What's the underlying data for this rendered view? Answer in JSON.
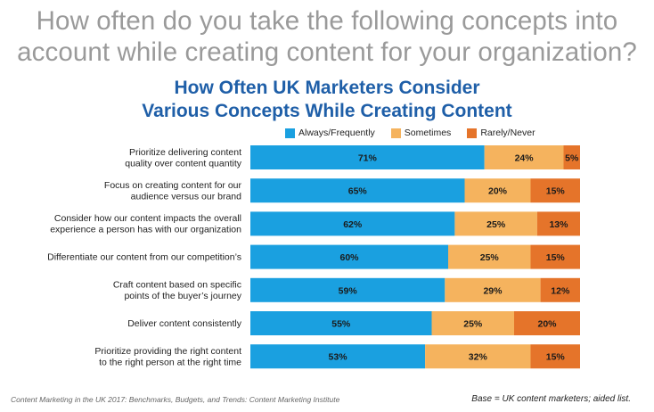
{
  "header": {
    "question_line1": "How often do you take the following concepts into",
    "question_line2": "account while creating content for your organization?",
    "title_line1": "How Often UK Marketers Consider",
    "title_line2": "Various Concepts While Creating Content"
  },
  "colors": {
    "always": "#1aa0e0",
    "sometimes": "#f5b35e",
    "rarely": "#e5742a",
    "title": "#1f5fa8"
  },
  "chart_data": {
    "type": "bar",
    "orientation": "horizontal",
    "stacked": true,
    "normalized_to_100": true,
    "categories": [
      [
        "Prioritize delivering content",
        "quality over content quantity"
      ],
      [
        "Focus on creating content for our",
        "audience versus our brand"
      ],
      [
        "Consider how our content impacts the overall",
        "experience a person has with our organization"
      ],
      [
        "Differentiate our content from our competition’s"
      ],
      [
        "Craft content based on specific",
        "points of the buyer’s journey"
      ],
      [
        "Deliver content consistently"
      ],
      [
        "Prioritize providing the right content",
        "to the right person at the right time"
      ]
    ],
    "series": [
      {
        "name": "Always/Frequently",
        "values": [
          71,
          65,
          62,
          60,
          59,
          55,
          53
        ],
        "labels": [
          "71%",
          "65%",
          "62%",
          "60%",
          "59%",
          "55%",
          "53%"
        ]
      },
      {
        "name": "Sometimes",
        "values": [
          24,
          20,
          25,
          25,
          29,
          25,
          32
        ],
        "labels": [
          "24%",
          "20%",
          "25%",
          "25%",
          "29%",
          "25%",
          "32%"
        ]
      },
      {
        "name": "Rarely/Never",
        "values": [
          5,
          15,
          13,
          15,
          12,
          20,
          15
        ],
        "labels": [
          "5%",
          "15%",
          "13%",
          "15%",
          "12%",
          "20%",
          "15%"
        ]
      }
    ],
    "legend_position": "top",
    "grid": false
  },
  "footer": {
    "source": "Content Marketing in the UK 2017: Benchmarks, Budgets, and Trends: Content Marketing Institute",
    "base": "Base = UK content marketers; aided list."
  }
}
